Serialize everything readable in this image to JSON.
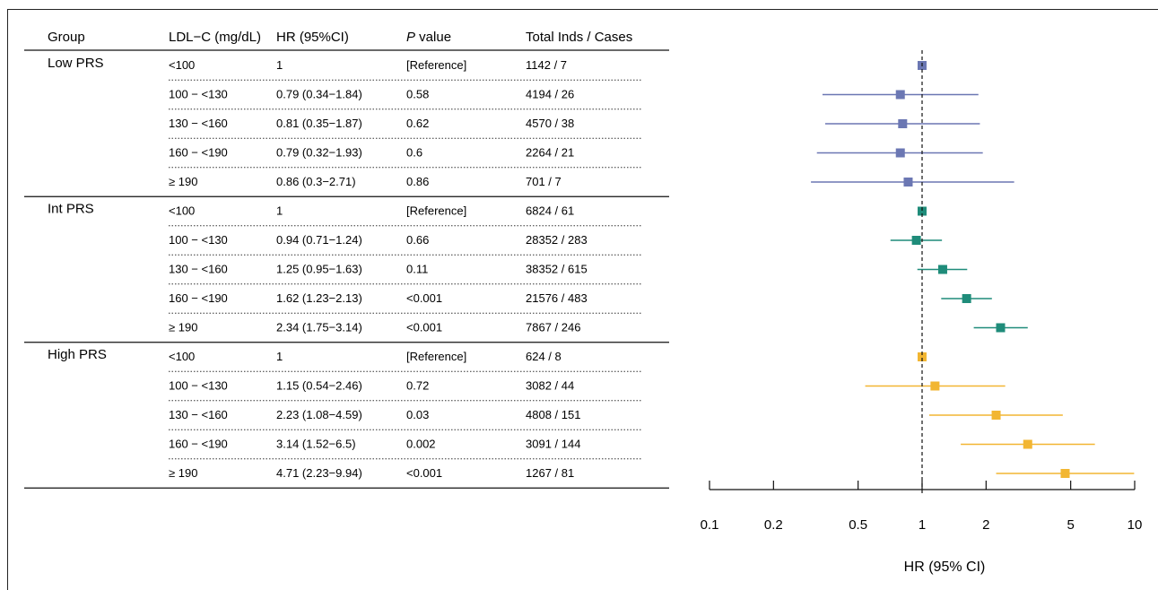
{
  "table_headers": {
    "group": "Group",
    "ldl": "LDL−C (mg/dL)",
    "hr": "HR (95%CI)",
    "p_italic": "P",
    "p_rest": " value",
    "total": "Total Inds / Cases"
  },
  "groups": [
    {
      "name": "Low PRS",
      "color": "#6b77b3"
    },
    {
      "name": "Int PRS",
      "color": "#1f8c7a"
    },
    {
      "name": "High PRS",
      "color": "#f2b632"
    }
  ],
  "rows": [
    {
      "group": 0,
      "ldl": "<100",
      "hr": "1",
      "p": "[Reference]",
      "total": "1142 / 7"
    },
    {
      "group": 0,
      "ldl": "100 − <130",
      "hr": "0.79 (0.34−1.84)",
      "p": "0.58",
      "total": "4194 / 26"
    },
    {
      "group": 0,
      "ldl": "130 − <160",
      "hr": "0.81 (0.35−1.87)",
      "p": "0.62",
      "total": "4570 / 38"
    },
    {
      "group": 0,
      "ldl": "160 − <190",
      "hr": "0.79 (0.32−1.93)",
      "p": "0.6",
      "total": "2264 / 21"
    },
    {
      "group": 0,
      "ldl": "≥ 190",
      "hr": "0.86 (0.3−2.71)",
      "p": "0.86",
      "total": "701 / 7"
    },
    {
      "group": 1,
      "ldl": "<100",
      "hr": "1",
      "p": "[Reference]",
      "total": "6824 / 61"
    },
    {
      "group": 1,
      "ldl": "100 − <130",
      "hr": "0.94 (0.71−1.24)",
      "p": "0.66",
      "total": "28352 / 283"
    },
    {
      "group": 1,
      "ldl": "130 − <160",
      "hr": "1.25 (0.95−1.63)",
      "p": "0.11",
      "total": "38352 / 615"
    },
    {
      "group": 1,
      "ldl": "160 − <190",
      "hr": "1.62 (1.23−2.13)",
      "p": "<0.001",
      "total": "21576 / 483"
    },
    {
      "group": 1,
      "ldl": "≥ 190",
      "hr": "2.34 (1.75−3.14)",
      "p": "<0.001",
      "total": "7867 / 246"
    },
    {
      "group": 2,
      "ldl": "<100",
      "hr": "1",
      "p": "[Reference]",
      "total": "624 / 8"
    },
    {
      "group": 2,
      "ldl": "100 − <130",
      "hr": "1.15 (0.54−2.46)",
      "p": "0.72",
      "total": "3082 / 44"
    },
    {
      "group": 2,
      "ldl": "130 − <160",
      "hr": "2.23 (1.08−4.59)",
      "p": "0.03",
      "total": "4808 / 151"
    },
    {
      "group": 2,
      "ldl": "160 − <190",
      "hr": "3.14 (1.52−6.5)",
      "p": "0.002",
      "total": "3091 / 144"
    },
    {
      "group": 2,
      "ldl": "≥ 190",
      "hr": "4.71 (2.23−9.94)",
      "p": "<0.001",
      "total": "1267 / 81"
    }
  ],
  "chart_data": {
    "type": "forest",
    "xlabel": "HR (95% CI)",
    "xscale": "log",
    "xlim": [
      0.1,
      10
    ],
    "xticks": [
      0.1,
      0.2,
      0.5,
      1,
      2,
      5,
      10
    ],
    "xtick_labels": [
      "0.1",
      "0.2",
      "0.5",
      "1",
      "2",
      "5",
      "10"
    ],
    "reference_line": 1,
    "points": [
      {
        "hr": 1,
        "lo": 1,
        "hi": 1
      },
      {
        "hr": 0.79,
        "lo": 0.34,
        "hi": 1.84
      },
      {
        "hr": 0.81,
        "lo": 0.35,
        "hi": 1.87
      },
      {
        "hr": 0.79,
        "lo": 0.32,
        "hi": 1.93
      },
      {
        "hr": 0.86,
        "lo": 0.3,
        "hi": 2.71
      },
      {
        "hr": 1,
        "lo": 1,
        "hi": 1
      },
      {
        "hr": 0.94,
        "lo": 0.71,
        "hi": 1.24
      },
      {
        "hr": 1.25,
        "lo": 0.95,
        "hi": 1.63
      },
      {
        "hr": 1.62,
        "lo": 1.23,
        "hi": 2.13
      },
      {
        "hr": 2.34,
        "lo": 1.75,
        "hi": 3.14
      },
      {
        "hr": 1,
        "lo": 1,
        "hi": 1
      },
      {
        "hr": 1.15,
        "lo": 0.54,
        "hi": 2.46
      },
      {
        "hr": 2.23,
        "lo": 1.08,
        "hi": 4.59
      },
      {
        "hr": 3.14,
        "lo": 1.52,
        "hi": 6.5
      },
      {
        "hr": 4.71,
        "lo": 2.23,
        "hi": 9.94
      }
    ]
  }
}
